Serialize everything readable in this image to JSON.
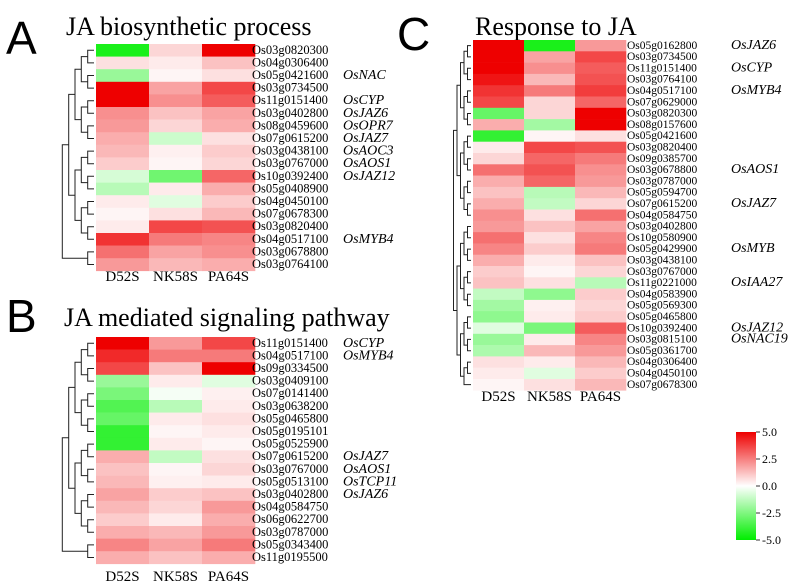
{
  "chart_data": [
    {
      "type": "heatmap",
      "panel_letter": "A",
      "title": "JA biosynthetic process",
      "columns": [
        "D52S",
        "NK58S",
        "PA64S"
      ],
      "rows": [
        "Os03g0820300",
        "Os04g0306400",
        "Os05g0421600",
        "Os03g0734500",
        "Os11g0151400",
        "Os03g0402800",
        "Os08g0459600",
        "Os07g0615200",
        "Os03g0438100",
        "Os03g0767000",
        "Os10g0392400",
        "Os05g0408900",
        "Os04g0450100",
        "Os07g0678300",
        "Os03g0820400",
        "Os04g0517100",
        "Os03g0678800",
        "Os03g0764100"
      ],
      "row_annotations": [
        "",
        "",
        "OsNAC",
        "",
        "OsCYP",
        "OsJAZ6",
        "OsOPR7",
        "OsJAZ7",
        "OsAOC3",
        "OsAOS1",
        "OsJAZ12",
        "",
        "",
        "",
        "",
        "OsMYB4",
        "",
        ""
      ],
      "values": [
        [
          -4.5,
          0.8,
          5.0
        ],
        [
          0.6,
          0.4,
          1.2
        ],
        [
          -2.0,
          0.2,
          0.6
        ],
        [
          5.0,
          1.8,
          3.6
        ],
        [
          5.0,
          2.2,
          3.2
        ],
        [
          2.2,
          1.2,
          1.8
        ],
        [
          2.0,
          0.8,
          1.6
        ],
        [
          1.6,
          -1.0,
          0.6
        ],
        [
          1.4,
          0.3,
          1.0
        ],
        [
          1.0,
          0.2,
          0.8
        ],
        [
          -0.8,
          -2.8,
          3.0
        ],
        [
          -1.4,
          0.4,
          1.6
        ],
        [
          0.4,
          -0.6,
          1.0
        ],
        [
          0.2,
          0.6,
          1.4
        ],
        [
          0.4,
          3.6,
          3.4
        ],
        [
          4.0,
          2.6,
          2.4
        ],
        [
          2.8,
          1.8,
          2.2
        ],
        [
          2.0,
          1.4,
          1.6
        ]
      ]
    },
    {
      "type": "heatmap",
      "panel_letter": "B",
      "title": "JA mediated signaling pathway",
      "columns": [
        "D52S",
        "NK58S",
        "PA64S"
      ],
      "rows": [
        "Os11g0151400",
        "Os04g0517100",
        "Os09g0334500",
        "Os03g0409100",
        "Os07g0141400",
        "Os03g0638200",
        "Os05g0465800",
        "Os05g0195101",
        "Os05g0525900",
        "Os07g0615200",
        "Os03g0767000",
        "Os05g0513100",
        "Os03g0402800",
        "Os04g0584750",
        "Os06g0622700",
        "Os03g0787000",
        "Os05g0343400",
        "Os11g0195500"
      ],
      "row_annotations": [
        "OsCYP",
        "OsMYB4",
        "",
        "",
        "",
        "",
        "",
        "",
        "",
        "OsJAZ7",
        "OsAOS1",
        "OsTCP11",
        "OsJAZ6",
        "",
        "",
        "",
        "",
        ""
      ],
      "values": [
        [
          5.0,
          2.0,
          3.6
        ],
        [
          4.2,
          2.6,
          2.6
        ],
        [
          3.6,
          1.2,
          5.0
        ],
        [
          -2.0,
          0.4,
          -0.6
        ],
        [
          -2.6,
          -0.2,
          0.3
        ],
        [
          -3.4,
          -1.4,
          0.4
        ],
        [
          -3.0,
          0.4,
          0.6
        ],
        [
          -4.0,
          0.2,
          0.4
        ],
        [
          -4.0,
          0.4,
          0.2
        ],
        [
          1.6,
          -1.2,
          0.6
        ],
        [
          1.2,
          0.2,
          0.8
        ],
        [
          1.4,
          0.3,
          0.4
        ],
        [
          1.8,
          1.0,
          1.2
        ],
        [
          1.4,
          0.8,
          2.0
        ],
        [
          1.0,
          0.4,
          1.6
        ],
        [
          1.6,
          1.4,
          2.0
        ],
        [
          2.4,
          1.8,
          2.6
        ],
        [
          1.6,
          1.2,
          1.6
        ]
      ]
    },
    {
      "type": "heatmap",
      "panel_letter": "C",
      "title": "Response to JA",
      "columns": [
        "D52S",
        "NK58S",
        "PA64S"
      ],
      "rows": [
        "Os05g0162800",
        "Os03g0734500",
        "Os11g0151400",
        "Os03g0764100",
        "Os04g0517100",
        "Os07g0629000",
        "Os03g0820300",
        "Os08g0157600",
        "Os05g0421600",
        "Os03g0820400",
        "Os09g0385700",
        "Os03g0678800",
        "Os03g0787000",
        "Os05g0594700",
        "Os07g0615200",
        "Os04g0584750",
        "Os03g0402800",
        "Os10g0580900",
        "Os05g0429900",
        "Os03g0438100",
        "Os03g0767000",
        "Os11g0221000",
        "Os04g0583900",
        "Os05g0569300",
        "Os05g0465800",
        "Os10g0392400",
        "Os03g0815100",
        "Os05g0361700",
        "Os04g0306400",
        "Os04g0450100",
        "Os07g0678300"
      ],
      "row_annotations": [
        "OsJAZ6",
        "",
        "OsCYP",
        "",
        "OsMYB4",
        "",
        "",
        "",
        "",
        "",
        "",
        "OsAOS1",
        "",
        "",
        "OsJAZ7",
        "",
        "",
        "",
        "OsMYB",
        "",
        "",
        "OsIAA27",
        "",
        "",
        "",
        "OsJAZ12",
        "OsNAC19",
        "",
        "",
        "",
        ""
      ],
      "values": [
        [
          5.0,
          -4.5,
          2.0
        ],
        [
          5.0,
          1.8,
          3.6
        ],
        [
          5.0,
          2.2,
          3.2
        ],
        [
          4.6,
          1.4,
          3.4
        ],
        [
          4.0,
          2.6,
          3.8
        ],
        [
          3.6,
          0.8,
          3.0
        ],
        [
          -3.0,
          0.8,
          5.0
        ],
        [
          1.6,
          -1.8,
          5.0
        ],
        [
          -4.0,
          0.2,
          0.6
        ],
        [
          0.4,
          3.6,
          3.4
        ],
        [
          0.8,
          3.0,
          2.6
        ],
        [
          2.8,
          3.4,
          2.2
        ],
        [
          1.6,
          3.0,
          2.0
        ],
        [
          1.2,
          -1.4,
          1.4
        ],
        [
          1.6,
          -1.2,
          0.8
        ],
        [
          2.2,
          0.6,
          2.8
        ],
        [
          2.0,
          1.2,
          1.8
        ],
        [
          2.8,
          0.6,
          2.4
        ],
        [
          2.4,
          1.0,
          2.6
        ],
        [
          1.6,
          0.4,
          1.2
        ],
        [
          1.0,
          0.2,
          0.8
        ],
        [
          1.2,
          0.6,
          -1.4
        ],
        [
          -1.2,
          -2.2,
          1.0
        ],
        [
          -1.8,
          0.3,
          0.8
        ],
        [
          -2.2,
          0.4,
          1.0
        ],
        [
          -0.6,
          -2.6,
          3.2
        ],
        [
          -2.0,
          0.4,
          2.4
        ],
        [
          -1.6,
          1.4,
          2.0
        ],
        [
          0.6,
          0.4,
          1.4
        ],
        [
          0.4,
          -0.6,
          1.0
        ],
        [
          0.2,
          0.6,
          1.4
        ]
      ]
    }
  ],
  "color_scale": {
    "min": -5.0,
    "max": 5.0,
    "tick_labels": [
      "5.0",
      "2.5",
      "0.0",
      "-2.5",
      "-5.0"
    ],
    "low_color": "#00ee00",
    "mid_color": "#ffffff",
    "high_color": "#ee0000"
  }
}
